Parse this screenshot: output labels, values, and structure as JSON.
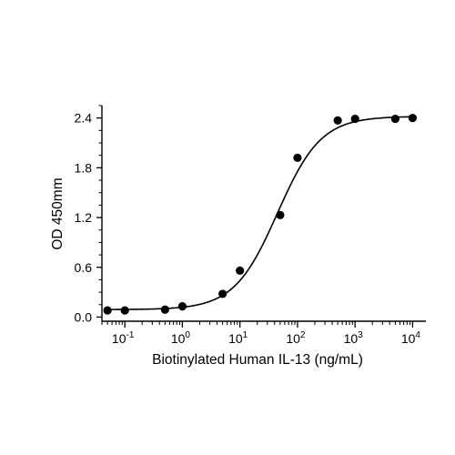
{
  "chart_data": {
    "type": "scatter",
    "title": "",
    "xlabel": "Biotinylated Human IL-13 (ng/mL)",
    "ylabel": "OD 450mm",
    "x_scale": "log",
    "xlim": [
      0.04,
      17000
    ],
    "ylim": [
      -0.05,
      2.55
    ],
    "x_ticks": [
      {
        "value": 0.1,
        "base": "10",
        "exp": "-1"
      },
      {
        "value": 1,
        "base": "10",
        "exp": "0"
      },
      {
        "value": 10,
        "base": "10",
        "exp": "1"
      },
      {
        "value": 100,
        "base": "10",
        "exp": "2"
      },
      {
        "value": 1000,
        "base": "10",
        "exp": "3"
      },
      {
        "value": 10000,
        "base": "10",
        "exp": "4"
      }
    ],
    "y_ticks": [
      {
        "value": 0.0,
        "label": "0.0"
      },
      {
        "value": 0.6,
        "label": "0.6"
      },
      {
        "value": 1.2,
        "label": "1.2"
      },
      {
        "value": 1.8,
        "label": "1.8"
      },
      {
        "value": 2.4,
        "label": "2.4"
      }
    ],
    "grid": false,
    "legend": "none",
    "series": [
      {
        "points": [
          {
            "x": 0.05,
            "y": 0.08
          },
          {
            "x": 0.1,
            "y": 0.08
          },
          {
            "x": 0.5,
            "y": 0.09
          },
          {
            "x": 1,
            "y": 0.13
          },
          {
            "x": 5,
            "y": 0.28
          },
          {
            "x": 10,
            "y": 0.56
          },
          {
            "x": 50,
            "y": 1.23
          },
          {
            "x": 100,
            "y": 1.92
          },
          {
            "x": 500,
            "y": 2.37
          },
          {
            "x": 1000,
            "y": 2.39
          },
          {
            "x": 5000,
            "y": 2.39
          },
          {
            "x": 10000,
            "y": 2.4
          }
        ],
        "fit": {
          "model": "4PL",
          "bottom": 0.09,
          "top": 2.42,
          "ec50": 45,
          "hill": 1.15
        }
      }
    ],
    "colors": {
      "points": "#000000",
      "line": "#000000",
      "axis": "#000000"
    }
  }
}
